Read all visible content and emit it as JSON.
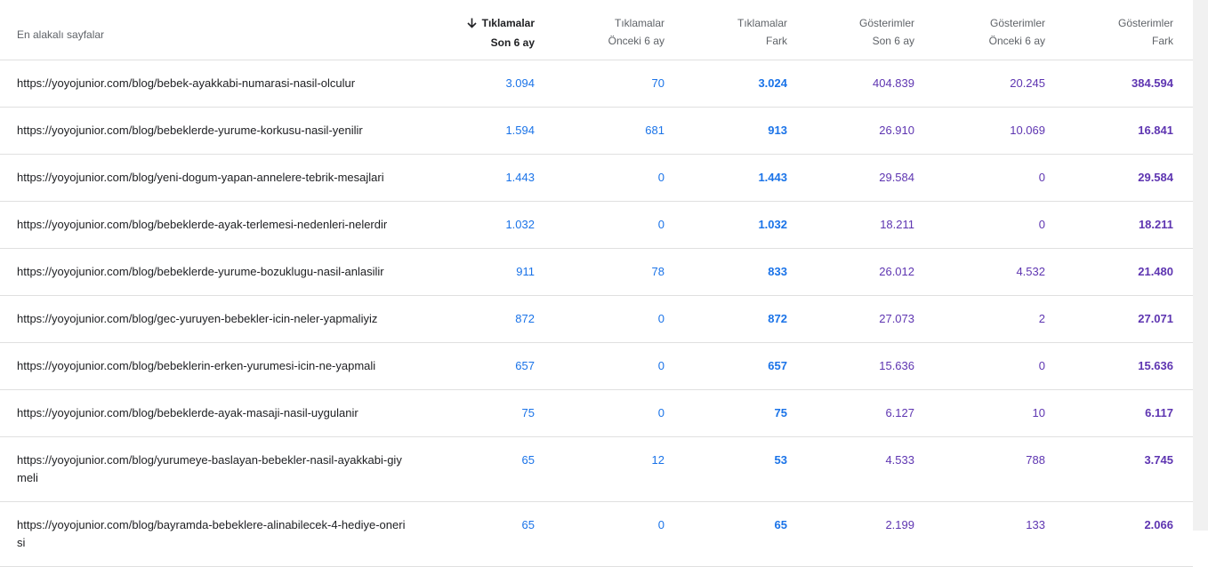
{
  "headers": {
    "page": "En alakalı sayfalar",
    "clicks_recent": {
      "line1": "Tıklamalar",
      "line2": "Son 6 ay"
    },
    "clicks_prev": {
      "line1": "Tıklamalar",
      "line2": "Önceki 6 ay"
    },
    "clicks_diff": {
      "line1": "Tıklamalar",
      "line2": "Fark"
    },
    "impr_recent": {
      "line1": "Gösterimler",
      "line2": "Son 6 ay"
    },
    "impr_prev": {
      "line1": "Gösterimler",
      "line2": "Önceki 6 ay"
    },
    "impr_diff": {
      "line1": "Gösterimler",
      "line2": "Fark"
    }
  },
  "rows": [
    {
      "url": "https://yoyojunior.com/blog/bebek-ayakkabi-numarasi-nasil-olculur",
      "c1": "3.094",
      "c2": "70",
      "c3": "3.024",
      "i1": "404.839",
      "i2": "20.245",
      "i3": "384.594"
    },
    {
      "url": "https://yoyojunior.com/blog/bebeklerde-yurume-korkusu-nasil-yenilir",
      "c1": "1.594",
      "c2": "681",
      "c3": "913",
      "i1": "26.910",
      "i2": "10.069",
      "i3": "16.841"
    },
    {
      "url": "https://yoyojunior.com/blog/yeni-dogum-yapan-annelere-tebrik-mesajlari",
      "c1": "1.443",
      "c2": "0",
      "c3": "1.443",
      "i1": "29.584",
      "i2": "0",
      "i3": "29.584"
    },
    {
      "url": "https://yoyojunior.com/blog/bebeklerde-ayak-terlemesi-nedenleri-nelerdir",
      "c1": "1.032",
      "c2": "0",
      "c3": "1.032",
      "i1": "18.211",
      "i2": "0",
      "i3": "18.211"
    },
    {
      "url": "https://yoyojunior.com/blog/bebeklerde-yurume-bozuklugu-nasil-anlasilir",
      "c1": "911",
      "c2": "78",
      "c3": "833",
      "i1": "26.012",
      "i2": "4.532",
      "i3": "21.480"
    },
    {
      "url": "https://yoyojunior.com/blog/gec-yuruyen-bebekler-icin-neler-yapmaliyiz",
      "c1": "872",
      "c2": "0",
      "c3": "872",
      "i1": "27.073",
      "i2": "2",
      "i3": "27.071"
    },
    {
      "url": "https://yoyojunior.com/blog/bebeklerin-erken-yurumesi-icin-ne-yapmali",
      "c1": "657",
      "c2": "0",
      "c3": "657",
      "i1": "15.636",
      "i2": "0",
      "i3": "15.636"
    },
    {
      "url": "https://yoyojunior.com/blog/bebeklerde-ayak-masaji-nasil-uygulanir",
      "c1": "75",
      "c2": "0",
      "c3": "75",
      "i1": "6.127",
      "i2": "10",
      "i3": "6.117"
    },
    {
      "url": "https://yoyojunior.com/blog/yurumeye-baslayan-bebekler-nasil-ayakkabi-giymeli",
      "c1": "65",
      "c2": "12",
      "c3": "53",
      "i1": "4.533",
      "i2": "788",
      "i3": "3.745"
    },
    {
      "url": "https://yoyojunior.com/blog/bayramda-bebeklere-alinabilecek-4-hediye-onerisi",
      "c1": "65",
      "c2": "0",
      "c3": "65",
      "i1": "2.199",
      "i2": "133",
      "i3": "2.066"
    }
  ],
  "colors": {
    "clicks": "#1a73e8",
    "impressions": "#5e35b1",
    "border": "#e0e0e0"
  },
  "icons": {
    "sort": "arrow-down-icon"
  }
}
